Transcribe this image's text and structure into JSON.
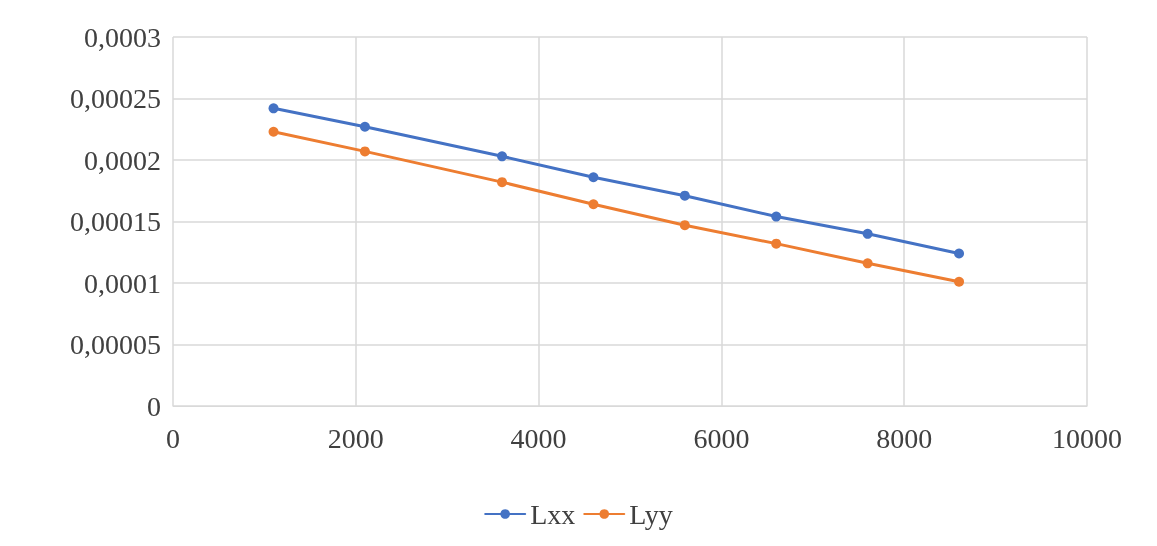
{
  "chart_data": {
    "type": "line",
    "x": [
      1100,
      2100,
      3600,
      4600,
      5600,
      6600,
      7600,
      8600
    ],
    "series": [
      {
        "name": "Lxx",
        "color": "#4472c4",
        "values": [
          0.000242,
          0.000227,
          0.000203,
          0.000186,
          0.000171,
          0.000154,
          0.00014,
          0.000124
        ]
      },
      {
        "name": "Lyy",
        "color": "#ed7d31",
        "values": [
          0.000223,
          0.000207,
          0.000182,
          0.000164,
          0.000147,
          0.000132,
          0.000116,
          0.000101
        ]
      }
    ],
    "xlim": [
      0,
      10000
    ],
    "xticks": [
      0,
      2000,
      4000,
      6000,
      8000,
      10000
    ],
    "ylim": [
      0,
      0.0003
    ],
    "yticks": [
      0,
      {
        "value": 5e-05,
        "label": "0,00005"
      },
      {
        "value": 0.0001,
        "label": "0,0001"
      },
      {
        "value": 0.00015,
        "label": "0,00015"
      },
      {
        "value": 0.0002,
        "label": "0,0002"
      },
      {
        "value": 0.00025,
        "label": "0,00025"
      },
      {
        "value": 0.0003,
        "label": "0,0003"
      }
    ],
    "grid": true,
    "legend": "bottom",
    "marker": "circle",
    "line_style": "solid"
  }
}
